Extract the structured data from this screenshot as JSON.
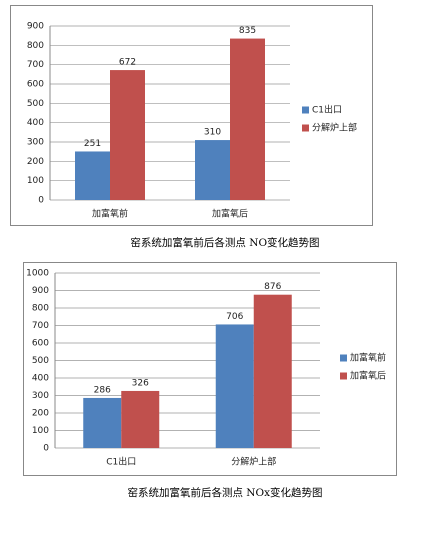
{
  "chart_data": [
    {
      "type": "bar",
      "title": "窑系统加富氧前后各测点 NO变化趋势图",
      "categories": [
        "加富氧前",
        "加富氧后"
      ],
      "series": [
        {
          "name": "C1出口",
          "color": "#4f81bd",
          "values": [
            251,
            310
          ]
        },
        {
          "name": "分解炉上部",
          "color": "#c0504d",
          "values": [
            672,
            835
          ]
        }
      ],
      "ylim": [
        0,
        900
      ],
      "yticks": [
        0,
        100,
        200,
        300,
        400,
        500,
        600,
        700,
        800,
        900
      ],
      "grid": true,
      "legend": "right"
    },
    {
      "type": "bar",
      "title": "窑系统加富氧前后各测点 NOx变化趋势图",
      "categories": [
        "C1出口",
        "分解炉上部"
      ],
      "series": [
        {
          "name": "加富氧前",
          "color": "#4f81bd",
          "values": [
            286,
            706
          ]
        },
        {
          "name": "加富氧后",
          "color": "#c0504d",
          "values": [
            326,
            876
          ]
        }
      ],
      "ylim": [
        0,
        1000
      ],
      "yticks": [
        0,
        100,
        200,
        300,
        400,
        500,
        600,
        700,
        800,
        900,
        1000
      ],
      "grid": true,
      "legend": "right"
    }
  ]
}
